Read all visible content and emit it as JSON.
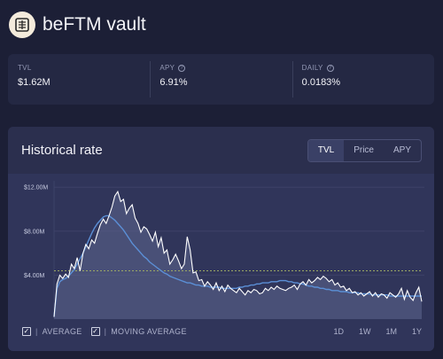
{
  "header": {
    "title": "beFTM vault",
    "logo_icon": "beefy-logo-icon"
  },
  "stats": [
    {
      "label": "TVL",
      "value": "$1.62M",
      "help": false
    },
    {
      "label": "APY",
      "value": "6.91%",
      "help": true
    },
    {
      "label": "DAILY",
      "value": "0.0183%",
      "help": true
    }
  ],
  "chart_card": {
    "title": "Historical rate",
    "tabs": [
      "TVL",
      "Price",
      "APY"
    ],
    "active_tab": "TVL",
    "legend": {
      "average": "AVERAGE",
      "moving_average": "MOVING AVERAGE"
    },
    "ranges": [
      "1D",
      "1W",
      "1M",
      "1Y"
    ],
    "active_range": "1Y"
  },
  "chart_data": {
    "type": "area",
    "title": "",
    "xlabel": "",
    "ylabel": "",
    "ylim": [
      0,
      13000000
    ],
    "y_ticks": [
      {
        "value": 4000000,
        "label": "$4.00M"
      },
      {
        "value": 8000000,
        "label": "$8.00M"
      },
      {
        "value": 12000000,
        "label": "$12.00M"
      }
    ],
    "grid": true,
    "series": [
      {
        "values": [
          0.2,
          3.2,
          4.0,
          3.7,
          4.1,
          3.8,
          5.0,
          4.6,
          5.6,
          4.4,
          6.0,
          6.8,
          6.4,
          7.2,
          6.9,
          7.8,
          8.6,
          9.1,
          8.7,
          9.4,
          10.2,
          11.2,
          11.6,
          10.7,
          10.9,
          9.6,
          10.1,
          10.4,
          9.2,
          8.7,
          7.9,
          8.4,
          8.2,
          7.7,
          7.1,
          7.9,
          6.6,
          7.4,
          6.0,
          6.3,
          5.0,
          5.4,
          5.9,
          5.3,
          4.6,
          5.0,
          7.5,
          6.3,
          4.2,
          4.3,
          3.5,
          3.6,
          3.0,
          3.4,
          3.1,
          2.7,
          3.3,
          2.6,
          3.0,
          2.5,
          3.1,
          2.8,
          2.6,
          2.4,
          2.8,
          2.5,
          2.2,
          2.6,
          2.4,
          2.7,
          2.6,
          2.3,
          2.4,
          2.8,
          2.6,
          2.9,
          2.7,
          3.0,
          2.8,
          2.7,
          2.6,
          2.8,
          2.9,
          3.1,
          2.7,
          3.2,
          3.4,
          3.1,
          3.6,
          3.3,
          3.5,
          3.8,
          3.6,
          3.9,
          3.7,
          3.4,
          3.6,
          3.1,
          3.3,
          2.9,
          3.0,
          2.6,
          2.8,
          2.4,
          2.5,
          2.2,
          2.4,
          2.1,
          2.3,
          2.5,
          2.1,
          2.4,
          2.0,
          2.3,
          2.2,
          1.9,
          2.4,
          2.2,
          2.0,
          2.3,
          2.8,
          1.8,
          2.6,
          2.0,
          1.7,
          2.4,
          2.9,
          1.6
        ]
      },
      {
        "values": [
          0.2,
          2.8,
          3.4,
          3.6,
          3.7,
          3.9,
          4.2,
          4.5,
          5.0,
          5.5,
          6.0,
          6.6,
          7.2,
          7.8,
          8.3,
          8.7,
          9.0,
          9.3,
          9.4,
          9.4,
          9.2,
          9.0,
          8.7,
          8.4,
          8.1,
          7.7,
          7.3,
          6.9,
          6.6,
          6.3,
          6.0,
          5.7,
          5.5,
          5.2,
          5.0,
          4.8,
          4.6,
          4.4,
          4.2,
          4.1,
          3.9,
          3.8,
          3.7,
          3.6,
          3.5,
          3.4,
          3.3,
          3.3,
          3.2,
          3.1,
          3.1,
          3.0,
          3.0,
          3.0,
          2.9,
          2.9,
          2.9,
          2.9,
          2.8,
          2.8,
          2.8,
          2.8,
          2.8,
          2.8,
          2.9,
          2.9,
          3.0,
          3.0,
          3.1,
          3.1,
          3.2,
          3.2,
          3.3,
          3.3,
          3.3,
          3.4,
          3.4,
          3.4,
          3.5,
          3.5,
          3.5,
          3.4,
          3.4,
          3.3,
          3.3,
          3.2,
          3.2,
          3.1,
          3.0,
          3.0,
          2.9,
          2.9,
          2.8,
          2.8,
          2.7,
          2.7,
          2.6,
          2.6,
          2.6,
          2.5,
          2.5,
          2.5,
          2.4,
          2.4,
          2.4,
          2.4,
          2.3,
          2.3,
          2.3,
          2.3,
          2.2,
          2.2,
          2.2,
          2.2,
          2.2,
          2.2,
          2.1,
          2.1,
          2.1,
          2.1,
          2.1,
          2.1,
          2.1,
          2.1,
          2.1,
          2.1,
          2.1,
          2.1
        ]
      },
      {
        "values": [
          4.4
        ]
      }
    ],
    "y_unit": "millions USD"
  },
  "colors": {
    "line": "#ffffff",
    "moving_average": "#5b8fd6",
    "average": "#9aa765",
    "area_fill": "#5f6690"
  }
}
